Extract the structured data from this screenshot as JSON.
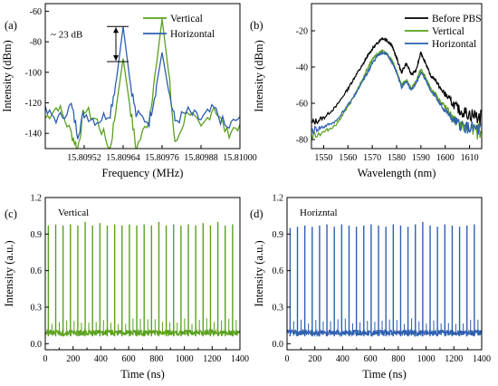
{
  "chart_data": [
    {
      "panel": "(a)",
      "type": "line",
      "xlabel": "Frequency (MHz)",
      "ylabel": "Intensity (dBm)",
      "xlim": [
        15.8094,
        15.81
      ],
      "ylim": [
        -150,
        -55
      ],
      "xticks": [
        "15.80952",
        "15.80964",
        "15.80976",
        "15.80988",
        "15.81000"
      ],
      "xtick_values": [
        15.80952,
        15.80964,
        15.80976,
        15.80988,
        15.81
      ],
      "yticks": [
        -60,
        -80,
        -100,
        -120,
        -140
      ],
      "legend_position": "top-right",
      "annotation": "~ 23 dB",
      "series": [
        {
          "name": "Vertical",
          "color": "#5aa01e",
          "x": [
            15.8094,
            15.80944,
            15.80948,
            15.8095,
            15.80952,
            15.80956,
            15.8096,
            15.80962,
            15.80964,
            15.80966,
            15.80968,
            15.80972,
            15.80974,
            15.80976,
            15.80978,
            15.8098,
            15.80984,
            15.80988,
            15.80992,
            15.80996,
            15.81
          ],
          "y": [
            -130,
            -122,
            -140,
            -150,
            -124,
            -132,
            -150,
            -121,
            -91,
            -121,
            -150,
            -130,
            -100,
            -65,
            -100,
            -148,
            -124,
            -138,
            -122,
            -140,
            -134
          ]
        },
        {
          "name": "Horizontal",
          "color": "#2e5fb0",
          "x": [
            15.8094,
            15.80944,
            15.80948,
            15.8095,
            15.80952,
            15.80956,
            15.8096,
            15.80962,
            15.80964,
            15.80966,
            15.80968,
            15.80972,
            15.80974,
            15.80976,
            15.80978,
            15.8098,
            15.80984,
            15.80988,
            15.80992,
            15.80996,
            15.81
          ],
          "y": [
            -126,
            -131,
            -122,
            -140,
            -127,
            -132,
            -126,
            -104,
            -70,
            -104,
            -128,
            -132,
            -112,
            -87,
            -112,
            -132,
            -126,
            -131,
            -124,
            -137,
            -129
          ]
        }
      ]
    },
    {
      "panel": "(b)",
      "type": "line",
      "xlabel": "Wavelength (nm)",
      "ylabel": "Intensity (dBm)",
      "xlim": [
        1545,
        1615
      ],
      "ylim": [
        -85,
        -5
      ],
      "xticks": [
        1550,
        1560,
        1570,
        1580,
        1590,
        1600,
        1610
      ],
      "yticks": [
        -20,
        -40,
        -60,
        -80
      ],
      "legend_position": "top-right",
      "series": [
        {
          "name": "Before PBS",
          "color": "#000000",
          "x": [
            1545,
            1550,
            1555,
            1560,
            1563,
            1566,
            1568,
            1570,
            1572,
            1574,
            1576,
            1578,
            1580,
            1582,
            1584,
            1586,
            1588,
            1590,
            1592,
            1594,
            1596,
            1598,
            1600,
            1603,
            1606,
            1610,
            1615
          ],
          "y": [
            -71,
            -68,
            -62,
            -52,
            -45,
            -39,
            -34,
            -30,
            -27,
            -24,
            -25,
            -28,
            -35,
            -43,
            -38,
            -44,
            -42,
            -32,
            -38,
            -45,
            -47,
            -52,
            -55,
            -60,
            -64,
            -66,
            -68
          ]
        },
        {
          "name": "Vertical",
          "color": "#5aa01e",
          "x": [
            1545,
            1550,
            1555,
            1560,
            1563,
            1566,
            1568,
            1570,
            1572,
            1574,
            1576,
            1578,
            1580,
            1582,
            1584,
            1586,
            1588,
            1590,
            1592,
            1594,
            1596,
            1598,
            1600,
            1603,
            1606,
            1610,
            1615
          ],
          "y": [
            -78,
            -76,
            -72,
            -62,
            -55,
            -47,
            -41,
            -36,
            -33,
            -31,
            -33,
            -36,
            -42,
            -50,
            -47,
            -52,
            -48,
            -41,
            -46,
            -52,
            -55,
            -59,
            -62,
            -68,
            -72,
            -74,
            -76
          ]
        },
        {
          "name": "Horizontal",
          "color": "#2e5fb0",
          "x": [
            1545,
            1550,
            1555,
            1560,
            1563,
            1566,
            1568,
            1570,
            1572,
            1574,
            1576,
            1578,
            1580,
            1582,
            1584,
            1586,
            1588,
            1590,
            1592,
            1594,
            1596,
            1598,
            1600,
            1603,
            1606,
            1610,
            1615
          ],
          "y": [
            -75,
            -73,
            -70,
            -61,
            -55,
            -48,
            -43,
            -38,
            -34,
            -32,
            -33,
            -37,
            -43,
            -51,
            -48,
            -53,
            -49,
            -43,
            -47,
            -53,
            -56,
            -61,
            -64,
            -69,
            -72,
            -74,
            -75
          ]
        }
      ]
    },
    {
      "panel": "(c)",
      "type": "line",
      "annotation": "Vertical",
      "xlabel": "Time (ns)",
      "ylabel": "Intensity (a.u.)",
      "xlim": [
        0,
        1400
      ],
      "ylim": [
        -0.05,
        1.2
      ],
      "xticks": [
        0,
        200,
        400,
        600,
        800,
        1000,
        1200,
        1400
      ],
      "minor_xticks": [
        100,
        300,
        500,
        700,
        900,
        1100,
        1300
      ],
      "yticks": [
        0.0,
        0.3,
        0.6,
        0.9,
        1.2
      ],
      "color": "#5aa01e",
      "baseline": 0.09,
      "pulse_times": [
        22,
        75,
        128,
        181,
        234,
        287,
        340,
        393,
        446,
        499,
        552,
        605,
        658,
        711,
        764,
        817,
        870,
        923,
        976,
        1029,
        1082,
        1135,
        1188,
        1241,
        1294,
        1347
      ],
      "pulse_peaks": [
        0.97,
        0.98,
        0.97,
        0.98,
        0.97,
        1.0,
        0.97,
        0.99,
        0.97,
        0.98,
        0.97,
        0.98,
        0.97,
        0.98,
        0.97,
        1.0,
        0.97,
        0.98,
        0.97,
        0.98,
        0.97,
        0.99,
        0.97,
        1.0,
        0.97,
        0.98
      ]
    },
    {
      "panel": "(d)",
      "type": "line",
      "annotation": "Horizntal",
      "xlabel": "Time (ns)",
      "ylabel": "Intensity (a.u.)",
      "xlim": [
        0,
        1400
      ],
      "ylim": [
        -0.05,
        1.2
      ],
      "xticks": [
        0,
        200,
        400,
        600,
        800,
        1000,
        1200,
        1400
      ],
      "minor_xticks": [
        100,
        300,
        500,
        700,
        900,
        1100,
        1300
      ],
      "yticks": [
        0.0,
        0.3,
        0.6,
        0.9,
        1.2
      ],
      "color": "#2e5fb0",
      "baseline": 0.09,
      "pulse_times": [
        22,
        75,
        128,
        181,
        234,
        287,
        340,
        393,
        446,
        499,
        552,
        605,
        658,
        711,
        764,
        817,
        870,
        923,
        976,
        1029,
        1082,
        1135,
        1188,
        1241,
        1294,
        1347
      ],
      "pulse_peaks": [
        0.95,
        0.96,
        0.97,
        0.96,
        0.97,
        0.98,
        0.96,
        0.98,
        0.97,
        0.96,
        0.97,
        0.98,
        0.97,
        0.96,
        0.98,
        0.97,
        0.96,
        0.98,
        1.0,
        0.97,
        0.96,
        0.98,
        0.97,
        0.96,
        0.97,
        0.98
      ]
    }
  ]
}
